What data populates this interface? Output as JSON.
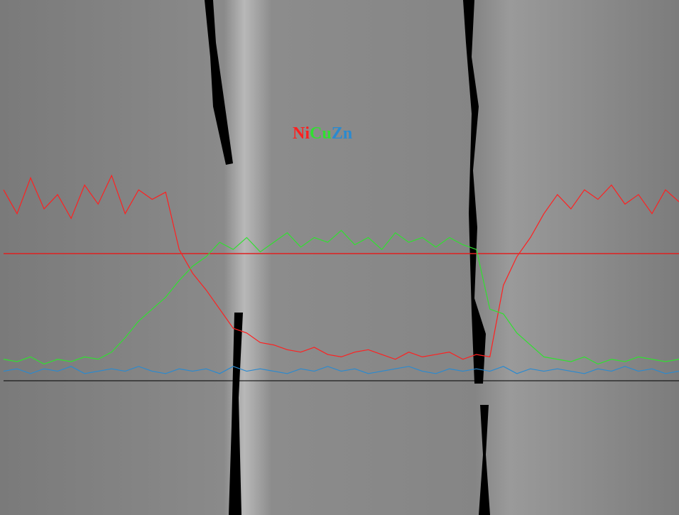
{
  "chart_data": {
    "type": "line",
    "xlim": [
      0,
      100
    ],
    "ylim": [
      0,
      100
    ],
    "x": [
      0,
      2,
      4,
      6,
      8,
      10,
      12,
      14,
      16,
      18,
      20,
      22,
      24,
      26,
      28,
      30,
      32,
      34,
      36,
      38,
      40,
      42,
      44,
      46,
      48,
      50,
      52,
      54,
      56,
      58,
      60,
      62,
      64,
      66,
      68,
      70,
      72,
      74,
      76,
      78,
      80,
      82,
      84,
      86,
      88,
      90,
      92,
      94,
      96,
      98,
      100
    ],
    "series": [
      {
        "name": "Ni",
        "color": "#ff2020",
        "values": [
          80,
          70,
          85,
          72,
          78,
          68,
          82,
          74,
          86,
          70,
          80,
          76,
          79,
          55,
          45,
          38,
          30,
          22,
          20,
          16,
          15,
          13,
          12,
          14,
          11,
          10,
          12,
          13,
          11,
          9,
          12,
          10,
          11,
          12,
          9,
          11,
          10,
          40,
          52,
          60,
          70,
          78,
          72,
          80,
          76,
          82,
          74,
          78,
          70,
          80,
          75
        ]
      },
      {
        "name": "Cu",
        "color": "#30e030",
        "values": [
          9,
          8,
          10,
          7,
          9,
          8,
          10,
          9,
          12,
          18,
          25,
          30,
          35,
          42,
          48,
          52,
          58,
          55,
          60,
          54,
          58,
          62,
          56,
          60,
          58,
          63,
          57,
          60,
          55,
          62,
          58,
          60,
          56,
          60,
          57,
          55,
          30,
          28,
          20,
          15,
          10,
          9,
          8,
          10,
          7,
          9,
          8,
          10,
          9,
          8,
          9
        ]
      },
      {
        "name": "Zn",
        "color": "#2a8ad0",
        "values": [
          4,
          5,
          3,
          5,
          4,
          6,
          3,
          4,
          5,
          4,
          6,
          4,
          3,
          5,
          4,
          5,
          3,
          6,
          4,
          5,
          4,
          3,
          5,
          4,
          6,
          4,
          5,
          3,
          4,
          5,
          6,
          4,
          3,
          5,
          4,
          5,
          4,
          6,
          3,
          5,
          4,
          5,
          4,
          3,
          5,
          4,
          6,
          4,
          5,
          3,
          4
        ]
      }
    ]
  }
}
